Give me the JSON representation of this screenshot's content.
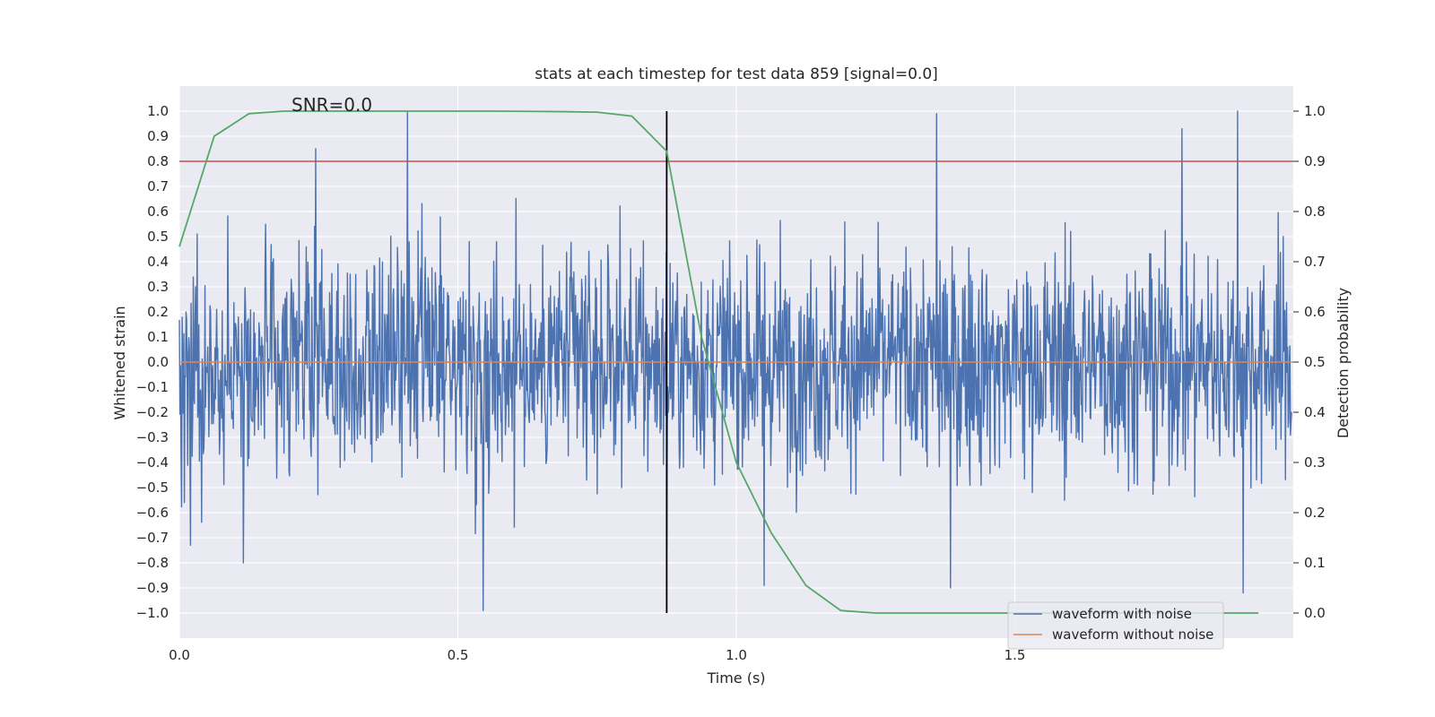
{
  "chart_data": {
    "type": "line",
    "title": "stats at each timestep for test data 859 [signal=0.0]",
    "xlabel": "Time (s)",
    "ylabel": "Whitened strain",
    "y2label": "Detection probability",
    "annotation": "SNR=0.0",
    "xlim": [
      0.0,
      2.0
    ],
    "ylim": [
      -1.1,
      1.1
    ],
    "y2lim": [
      -0.05,
      1.05
    ],
    "x_ticks": [
      0.0,
      0.5,
      1.0,
      1.5
    ],
    "x_tick_labels": [
      "0.0",
      "0.5",
      "1.0",
      "1.5"
    ],
    "y_ticks": [
      -1.0,
      -0.9,
      -0.8,
      -0.7,
      -0.6,
      -0.5,
      -0.4,
      -0.3,
      -0.2,
      -0.1,
      0.0,
      0.1,
      0.2,
      0.3,
      0.4,
      0.5,
      0.6,
      0.7,
      0.8,
      0.9,
      1.0
    ],
    "y_tick_labels": [
      "−1.0",
      "−0.9",
      "−0.8",
      "−0.7",
      "−0.6",
      "−0.5",
      "−0.4",
      "−0.3",
      "−0.2",
      "−0.1",
      "0.0",
      "0.1",
      "0.2",
      "0.3",
      "0.4",
      "0.5",
      "0.6",
      "0.7",
      "0.8",
      "0.9",
      "1.0"
    ],
    "y2_ticks": [
      0.0,
      0.1,
      0.2,
      0.3,
      0.4,
      0.5,
      0.6,
      0.7,
      0.8,
      0.9,
      1.0
    ],
    "y2_tick_labels": [
      "0.0",
      "0.1",
      "0.2",
      "0.3",
      "0.4",
      "0.5",
      "0.6",
      "0.7",
      "0.8",
      "0.9",
      "1.0"
    ],
    "grid": true,
    "legend_position": "bottom-right",
    "background_color": "#eaeaf2",
    "series": [
      {
        "name": "waveform with noise",
        "axis": "left",
        "color": "#4c72b0",
        "description": "noise trace, approx. 2000 samples over 0-2 s, amplitude within [-1, 1]; sampled noise envelope",
        "sample_rate": 1024,
        "peaks": [
          {
            "x": 0.41,
            "y": 1.0
          },
          {
            "x": 0.545,
            "y": -0.99
          },
          {
            "x": 1.36,
            "y": 0.99
          },
          {
            "x": 1.9,
            "y": 1.0
          },
          {
            "x": 0.245,
            "y": 0.85
          },
          {
            "x": 1.8,
            "y": 0.93
          },
          {
            "x": 1.385,
            "y": -0.9
          },
          {
            "x": 1.05,
            "y": -0.89
          },
          {
            "x": 1.91,
            "y": -0.92
          },
          {
            "x": 0.02,
            "y": -0.73
          },
          {
            "x": 0.115,
            "y": -0.8
          },
          {
            "x": 0.875,
            "y": -0.74
          }
        ]
      },
      {
        "name": "waveform without noise",
        "axis": "left",
        "color": "#dd8452",
        "x": [
          0.0,
          2.0
        ],
        "y": [
          0.0,
          0.0
        ]
      },
      {
        "name": "",
        "axis": "right",
        "color": "#55a868",
        "x": [
          0.0,
          0.0625,
          0.125,
          0.1875,
          0.25,
          0.3125,
          0.375,
          0.4375,
          0.5,
          0.5625,
          0.625,
          0.6875,
          0.75,
          0.8125,
          0.875,
          0.9375,
          1.0,
          1.0625,
          1.125,
          1.1875,
          1.25,
          1.3125,
          1.375,
          1.4375,
          1.5,
          1.5625,
          1.625,
          1.6875,
          1.75,
          1.8125,
          1.875,
          1.9375
        ],
        "y": [
          0.73,
          0.95,
          0.995,
          1.0,
          1.0,
          1.0,
          1.0,
          1.0,
          1.0,
          1.0,
          0.9995,
          0.999,
          0.998,
          0.99,
          0.92,
          0.55,
          0.3,
          0.16,
          0.055,
          0.005,
          0.0,
          0.0,
          0.0,
          0.0,
          0.0,
          0.0,
          0.0,
          0.0,
          0.0,
          0.0,
          0.0,
          0.0
        ]
      }
    ],
    "threshold": {
      "axis": "right",
      "y": 0.9,
      "color": "#c44e52"
    },
    "vline": {
      "x": 0.875,
      "y_from": -1.0,
      "y_to": 1.0,
      "color": "#000000"
    }
  }
}
